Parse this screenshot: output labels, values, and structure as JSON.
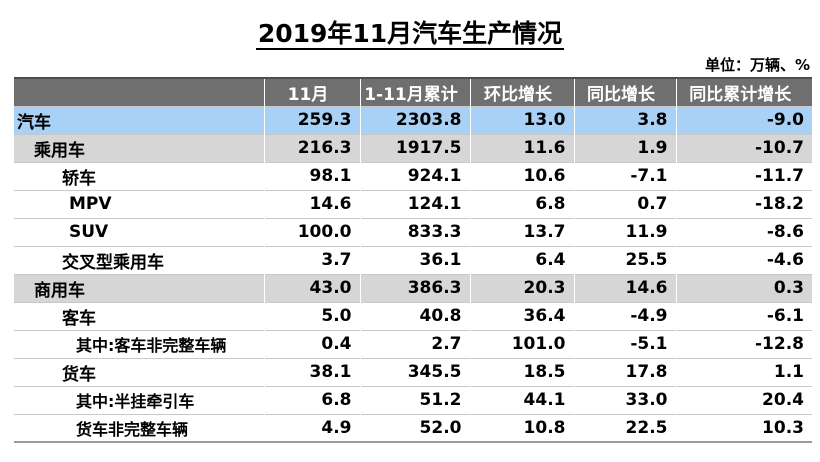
{
  "title": "2019年11月汽车生产情况",
  "unit_label": "单位：万辆、%",
  "columns": [
    "",
    "11月",
    "1-11月累计",
    "环比增长",
    "同比增长",
    "同比累计增长"
  ],
  "rows": [
    {
      "name": "汽车",
      "level": 0,
      "values": [
        "259.3",
        "2303.8",
        "13.0",
        "3.8",
        "-9.0"
      ]
    },
    {
      "name": "乘用车",
      "level": 1,
      "values": [
        "216.3",
        "1917.5",
        "11.6",
        "1.9",
        "-10.7"
      ]
    },
    {
      "name": "轿车",
      "level": 2,
      "values": [
        "98.1",
        "924.1",
        "10.6",
        "-7.1",
        "-11.7"
      ]
    },
    {
      "name": "MPV",
      "level": 2,
      "values": [
        "14.6",
        "124.1",
        "6.8",
        "0.7",
        "-18.2"
      ]
    },
    {
      "name": "SUV",
      "level": 2,
      "values": [
        "100.0",
        "833.3",
        "13.7",
        "11.9",
        "-8.6"
      ]
    },
    {
      "name": "交叉型乘用车",
      "level": 2,
      "values": [
        "3.7",
        "36.1",
        "6.4",
        "25.5",
        "-4.6"
      ]
    },
    {
      "name": "商用车",
      "level": 1,
      "values": [
        "43.0",
        "386.3",
        "20.3",
        "14.6",
        "0.3"
      ]
    },
    {
      "name": "客车",
      "level": 2,
      "values": [
        "5.0",
        "40.8",
        "36.4",
        "-4.9",
        "-6.1"
      ]
    },
    {
      "name": "其中:客车非完整车辆",
      "level": 3,
      "values": [
        "0.4",
        "2.7",
        "101.0",
        "-5.1",
        "-12.8"
      ]
    },
    {
      "name": "货车",
      "level": 2,
      "values": [
        "38.1",
        "345.5",
        "18.5",
        "17.8",
        "1.1"
      ]
    },
    {
      "name": "其中:半挂牵引车",
      "level": 3,
      "values": [
        "6.8",
        "51.2",
        "44.1",
        "33.0",
        "20.4"
      ]
    },
    {
      "name": "货车非完整车辆",
      "level": 3,
      "values": [
        "4.9",
        "52.0",
        "10.8",
        "22.5",
        "10.3"
      ]
    }
  ]
}
